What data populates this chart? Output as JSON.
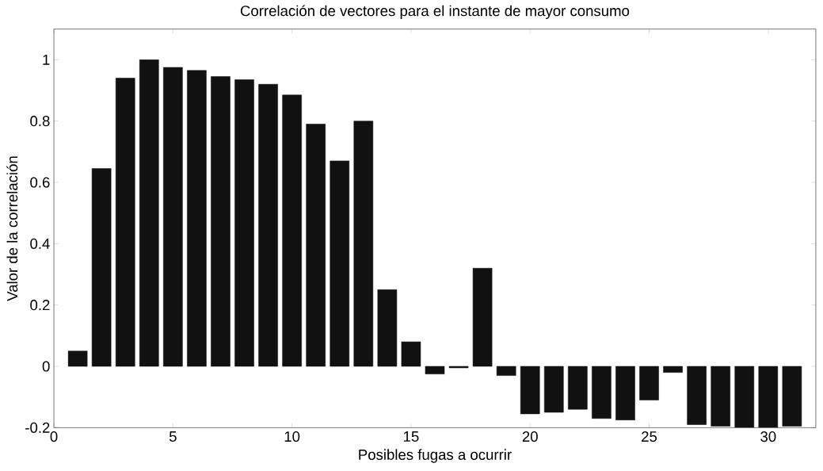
{
  "chart_data": {
    "type": "bar",
    "title": "Correlación de vectores para el instante de mayor consumo",
    "xlabel": "Posibles fugas a ocurrir",
    "ylabel": "Valor de la correlación",
    "x": [
      1,
      2,
      3,
      4,
      5,
      6,
      7,
      8,
      9,
      10,
      11,
      12,
      13,
      14,
      15,
      16,
      17,
      18,
      19,
      20,
      21,
      22,
      23,
      24,
      25,
      26,
      27,
      28,
      29,
      30,
      31
    ],
    "values": [
      0.05,
      0.645,
      0.94,
      1.0,
      0.975,
      0.965,
      0.945,
      0.935,
      0.92,
      0.885,
      0.79,
      0.67,
      0.8,
      0.25,
      0.08,
      -0.025,
      -0.005,
      0.32,
      -0.03,
      -0.155,
      -0.15,
      -0.14,
      -0.17,
      -0.175,
      -0.11,
      -0.02,
      -0.19,
      -0.195,
      -0.2,
      -0.2,
      -0.195
    ],
    "color": "#111111",
    "xlim": [
      0,
      32
    ],
    "ylim": [
      -0.2,
      1.1
    ],
    "xticks": [
      0,
      5,
      10,
      15,
      20,
      25,
      30
    ],
    "yticks": [
      -0.2,
      0,
      0.2,
      0.4,
      0.6,
      0.8,
      1
    ],
    "grid": false
  }
}
